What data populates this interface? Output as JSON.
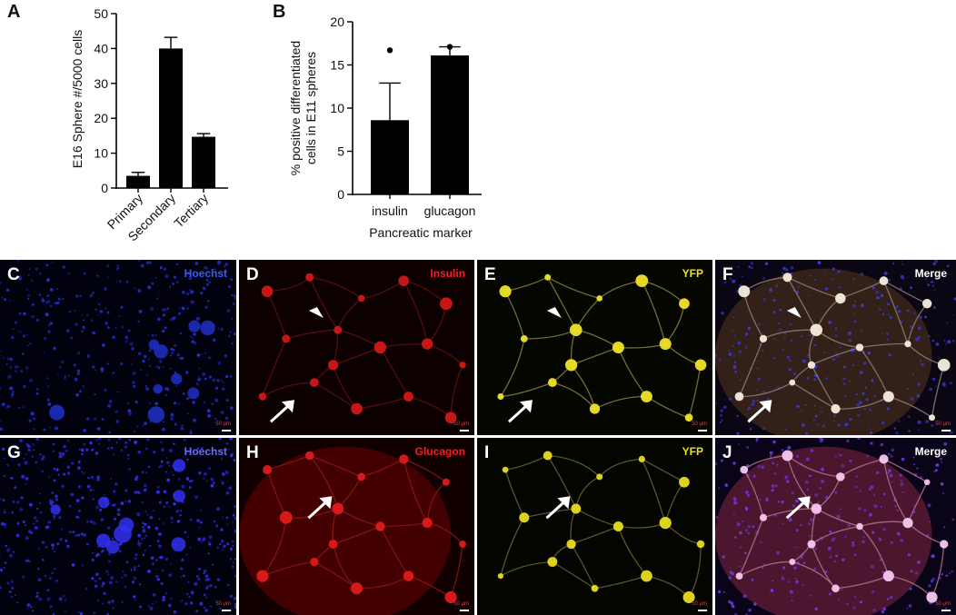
{
  "panel_labels": {
    "a": "A",
    "b": "B"
  },
  "chart_data": [
    {
      "type": "bar",
      "title": "",
      "xlabel": "",
      "ylabel": "E16 Sphere #/5000 cells",
      "categories": [
        "Primary",
        "Secondary",
        "Tertiary"
      ],
      "values": [
        3.5,
        40,
        14.7
      ],
      "error": [
        1.0,
        3.2,
        0.9
      ],
      "ylim": [
        0,
        50
      ],
      "yticks": [
        0,
        10,
        20,
        30,
        40,
        50
      ],
      "grid": false,
      "bar_color": "#000000"
    },
    {
      "type": "bar",
      "title": "",
      "xlabel": "Pancreatic marker",
      "ylabel": "% positive differentiated cells in E11 spheres",
      "ylabel_lines": [
        "% positive differentiated",
        "cells in E11 spheres"
      ],
      "categories": [
        "insulin",
        "glucagon"
      ],
      "values": [
        8.6,
        16.1
      ],
      "error": [
        4.3,
        1.0
      ],
      "points": [
        [
          16.7
        ],
        [
          17.1
        ]
      ],
      "ylim": [
        0,
        20
      ],
      "yticks": [
        0,
        5,
        10,
        15,
        20
      ],
      "grid": false,
      "bar_color": "#000000"
    }
  ],
  "micrographs": [
    {
      "letter": "C",
      "stain": "Hoechst",
      "color": "#3a5cff",
      "kind": "nuclei",
      "scale": "50 μm"
    },
    {
      "letter": "D",
      "stain": "Insulin",
      "color": "#ff1a1a",
      "kind": "network-red",
      "scale": "50 μm"
    },
    {
      "letter": "E",
      "stain": "YFP",
      "color": "#e8e020",
      "kind": "network-yellow",
      "scale": "50 μm"
    },
    {
      "letter": "F",
      "stain": "Merge",
      "color": "#ffffff",
      "kind": "network-merge",
      "scale": "50 μm"
    },
    {
      "letter": "G",
      "stain": "Hoechst",
      "color": "#6a6aff",
      "kind": "nuclei-dense",
      "scale": "50 μm"
    },
    {
      "letter": "H",
      "stain": "Glucagon",
      "color": "#ff1a1a",
      "kind": "network-red2",
      "scale": "50 μm"
    },
    {
      "letter": "I",
      "stain": "YFP",
      "color": "#e8e020",
      "kind": "network-yellow2",
      "scale": "50 μm"
    },
    {
      "letter": "J",
      "stain": "Merge",
      "color": "#ffffff",
      "kind": "network-merge2",
      "scale": "50 μm"
    }
  ]
}
